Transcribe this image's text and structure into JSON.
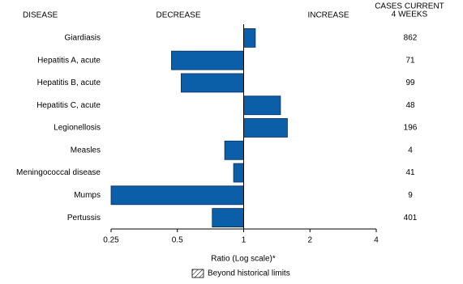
{
  "chart_data": {
    "type": "bar",
    "orientation": "horizontal",
    "x_scale": "log",
    "category_header": "DISEASE",
    "decrease_label": "DECREASE",
    "increase_label": "INCREASE",
    "value_header": [
      "CASES CURRENT",
      "4 WEEKS"
    ],
    "xlabel": "Ratio (Log scale)*",
    "categories": [
      "Giardiasis",
      "Hepatitis A, acute",
      "Hepatitis B, acute",
      "Hepatitis C, acute",
      "Legionellosis",
      "Measles",
      "Meningococcal disease",
      "Mumps",
      "Pertussis"
    ],
    "values": [
      1.13,
      0.47,
      0.52,
      1.47,
      1.58,
      0.82,
      0.9,
      0.25,
      0.72
    ],
    "cases": [
      862,
      71,
      99,
      48,
      196,
      4,
      41,
      9,
      401
    ],
    "color": "#0b5ea8",
    "baseline": 1,
    "xlim": [
      0.25,
      4
    ],
    "xticks": [
      0.25,
      0.5,
      1,
      2,
      4
    ],
    "legend": {
      "label": "Beyond historical limits",
      "pattern": "hatch"
    }
  }
}
